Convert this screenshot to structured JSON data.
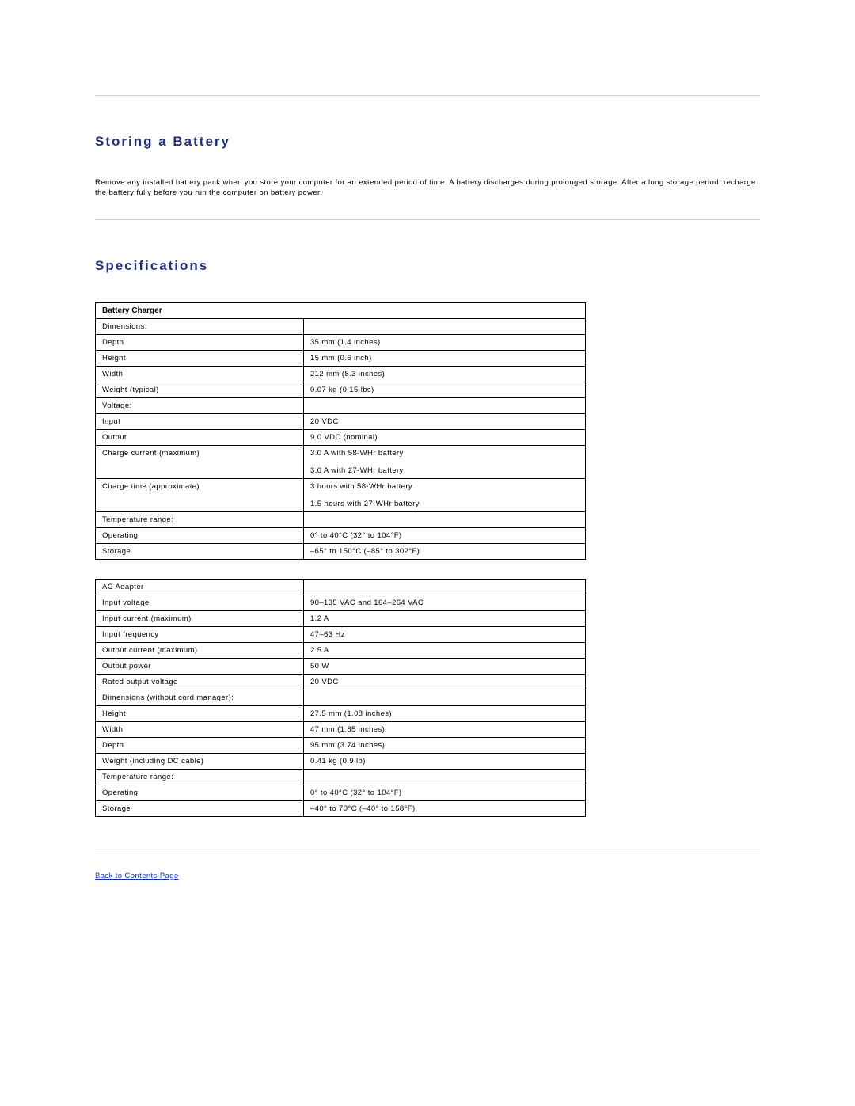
{
  "section1": {
    "title": "Storing a Battery",
    "paragraph": "Remove any installed battery pack when you store your computer for an extended period of time. A battery discharges during prolonged storage. After a long storage period, recharge the battery fully before you run the computer on battery power."
  },
  "section2": {
    "title": "Specifications"
  },
  "colors": {
    "heading": "#203080",
    "link": "#1030c0",
    "rule": "#d0d0d0",
    "table_border": "#000000",
    "background": "#ffffff"
  },
  "table1": {
    "header": "Battery Charger",
    "rows": [
      {
        "label": "Dimensions:",
        "value": "",
        "indent": 0
      },
      {
        "label": "Depth",
        "value": "35 mm (1.4 inches)",
        "indent": 1
      },
      {
        "label": "Height",
        "value": "15 mm (0.6 inch)",
        "indent": 1
      },
      {
        "label": "Width",
        "value": "212 mm (8.3 inches)",
        "indent": 1
      },
      {
        "label": "Weight (typical)",
        "value": "0.07 kg (0.15 lbs)",
        "indent": 0
      },
      {
        "label": "Voltage:",
        "value": "",
        "indent": 0
      },
      {
        "label": "Input",
        "value": "20 VDC",
        "indent": 1
      },
      {
        "label": "Output",
        "value": "9.0 VDC (nominal)",
        "indent": 1
      },
      {
        "label": "Charge current (maximum)",
        "value": "3.0 A with 58-WHr battery\n\n3.0 A with 27-WHr battery",
        "indent": 0
      },
      {
        "label": "Charge time (approximate)",
        "value": "3 hours with 58-WHr battery\n\n1.5 hours with 27-WHr battery",
        "indent": 0
      },
      {
        "label": "Temperature range:",
        "value": "",
        "indent": 0
      },
      {
        "label": "Operating",
        "value": "0° to 40°C (32° to 104°F)",
        "indent": 1
      },
      {
        "label": "Storage",
        "value": "–65° to 150°C (–85° to 302°F)",
        "indent": 1
      }
    ]
  },
  "table2": {
    "rows": [
      {
        "label": "AC Adapter",
        "value": "",
        "indent": 0
      },
      {
        "label": "Input voltage",
        "value": "90–135 VAC and 164–264 VAC",
        "indent": 0
      },
      {
        "label": "Input current (maximum)",
        "value": "1.2 A",
        "indent": 0
      },
      {
        "label": "Input frequency",
        "value": "47–63 Hz",
        "indent": 0
      },
      {
        "label": "Output current (maximum)",
        "value": "2.5 A",
        "indent": 0
      },
      {
        "label": "Output power",
        "value": "50 W",
        "indent": 0
      },
      {
        "label": "Rated output voltage",
        "value": "20 VDC",
        "indent": 0
      },
      {
        "label": "Dimensions (without cord manager):",
        "value": "",
        "indent": 0
      },
      {
        "label": "Height",
        "value": "27.5 mm (1.08 inches)",
        "indent": 1
      },
      {
        "label": "Width",
        "value": "47 mm (1.85 inches)",
        "indent": 1
      },
      {
        "label": "Depth",
        "value": "95 mm (3.74 inches)",
        "indent": 1
      },
      {
        "label": "Weight (including DC cable)",
        "value": "0.41 kg (0.9 lb)",
        "indent": 0
      },
      {
        "label": "Temperature range:",
        "value": "",
        "indent": 0
      },
      {
        "label": "Operating",
        "value": "0° to 40°C (32° to 104°F)",
        "indent": 1
      },
      {
        "label": "Storage",
        "value": "–40° to 70°C (–40° to 158°F)",
        "indent": 1
      }
    ]
  },
  "back_link": "Back to Contents Page"
}
